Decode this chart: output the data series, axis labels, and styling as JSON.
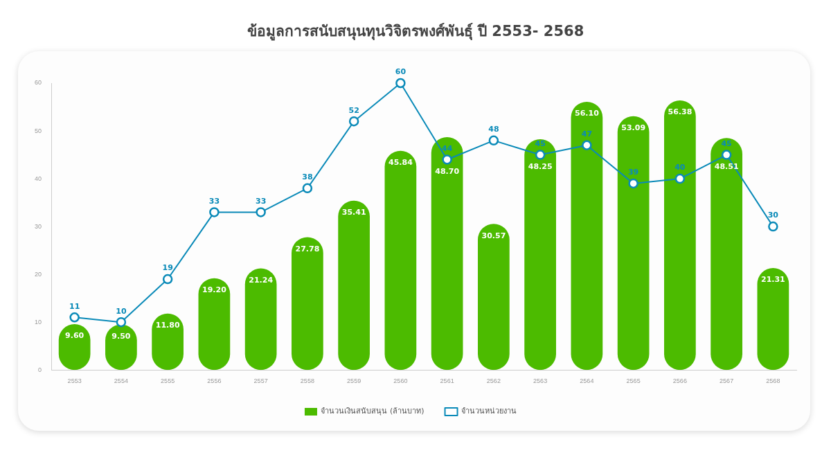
{
  "chart_data": {
    "type": "bar",
    "title": "ข้อมูลการสนับสนุนทุนวิจิตรพงศ์พันธุ์ ปี 2553- 2568",
    "categories": [
      "2553",
      "2554",
      "2555",
      "2556",
      "2557",
      "2558",
      "2559",
      "2560",
      "2561",
      "2562",
      "2563",
      "2564",
      "2565",
      "2566",
      "2567",
      "2568"
    ],
    "series": [
      {
        "name": "จำนวนเงินสนับสนุน (ล้านบาท)",
        "color": "#4cbb00",
        "values": [
          9.6,
          9.5,
          11.8,
          19.2,
          21.24,
          27.78,
          35.41,
          45.84,
          48.7,
          30.57,
          48.25,
          56.1,
          53.09,
          56.38,
          48.51,
          21.31
        ],
        "value_labels": [
          "9.60",
          "9.50",
          "11.80",
          "19.20",
          "21.24",
          "27.78",
          "35.41",
          "45.84",
          "48.70",
          "30.57",
          "48.25",
          "56.10",
          "53.09",
          "56.38",
          "48.51",
          "21.31"
        ]
      },
      {
        "name": "จำนวนหน่วยงาน",
        "type": "line",
        "color": "#0a8ab8",
        "values": [
          11,
          10,
          19,
          33,
          33,
          38,
          52,
          60,
          44,
          48,
          45,
          47,
          39,
          40,
          45,
          30
        ],
        "value_labels": [
          "11",
          "10",
          "19",
          "33",
          "33",
          "38",
          "52",
          "60",
          "44",
          "48",
          "45",
          "47",
          "39",
          "40",
          "45",
          "30"
        ]
      }
    ],
    "ylim": [
      0,
      60
    ],
    "yticks": [
      0,
      10,
      20,
      30,
      40,
      50,
      60
    ],
    "grid": false,
    "legend": "bottom",
    "marker": "circle",
    "line_style": "solid"
  }
}
